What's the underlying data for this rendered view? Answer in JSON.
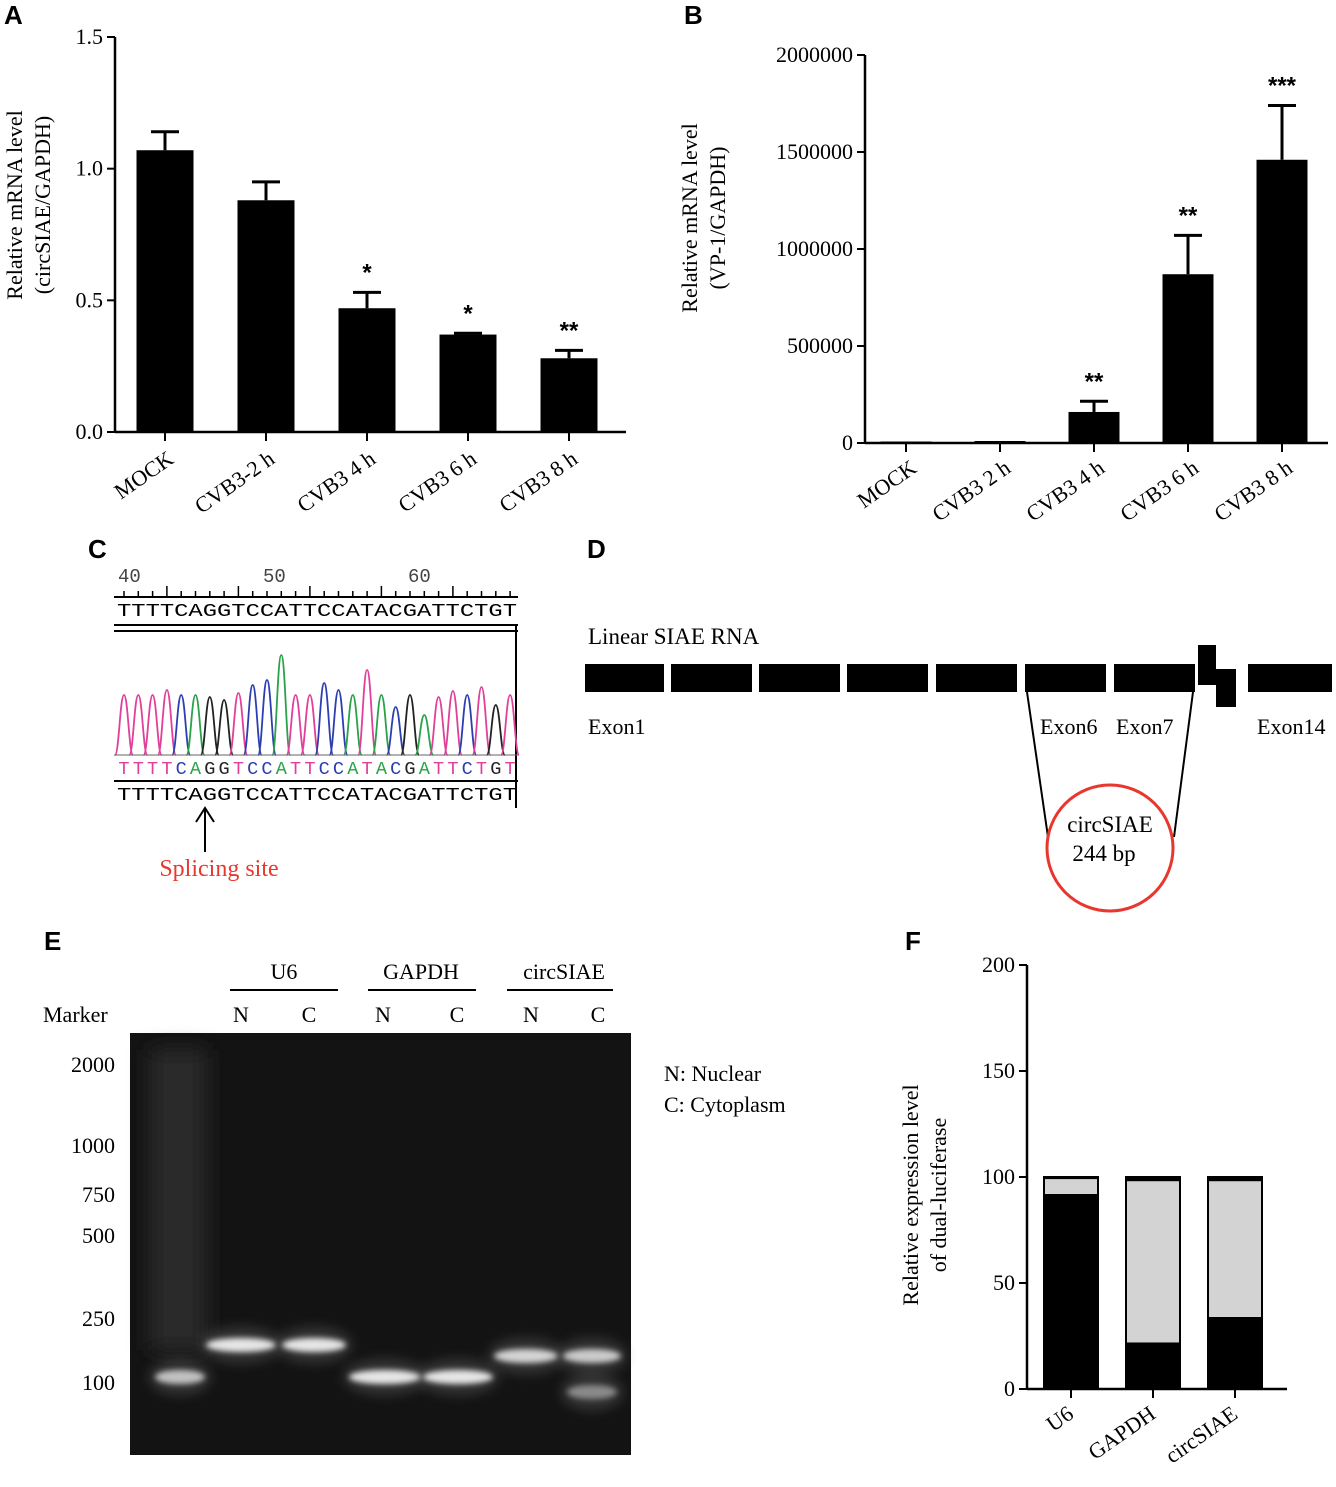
{
  "panel_labels": {
    "A": "A",
    "B": "B",
    "C": "C",
    "D": "D",
    "E": "E",
    "F": "F"
  },
  "chart_data": [
    {
      "id": "A",
      "type": "bar",
      "ylabel_line1": "Relative mRNA level",
      "ylabel_line2": "(circSIAE/GAPDH)",
      "categories": [
        "MOCK",
        "CVB3-2 h",
        "CVB3 4 h",
        "CVB3 6 h",
        "CVB3 8 h"
      ],
      "values": [
        1.07,
        0.88,
        0.47,
        0.37,
        0.28
      ],
      "errors": [
        0.07,
        0.07,
        0.06,
        0.005,
        0.03
      ],
      "significance": [
        "",
        "",
        "*",
        "*",
        "**"
      ],
      "ylim": [
        0,
        1.5
      ],
      "yticks": [
        "0.0",
        "0.5",
        "1.0",
        "1.5"
      ],
      "ytick_values": [
        0,
        0.5,
        1.0,
        1.5
      ],
      "color": "#000000"
    },
    {
      "id": "B",
      "type": "bar",
      "ylabel_line1": "Relative mRNA level",
      "ylabel_line2": "(VP-1/GAPDH)",
      "categories": [
        "MOCK",
        "CVB3 2 h",
        "CVB3 4 h",
        "CVB3 6 h",
        "CVB3 8 h"
      ],
      "values": [
        0,
        10000,
        160000,
        870000,
        1460000
      ],
      "errors": [
        0,
        0,
        55000,
        200000,
        280000
      ],
      "significance": [
        "",
        "",
        "**",
        "**",
        "***"
      ],
      "ylim": [
        0,
        2000000
      ],
      "yticks": [
        "0",
        "500000",
        "1000000",
        "1500000",
        "2000000"
      ],
      "ytick_values": [
        0,
        500000,
        1000000,
        1500000,
        2000000
      ],
      "color": "#000000"
    },
    {
      "id": "F",
      "type": "bar",
      "stacked": true,
      "ylabel_line1": "Relative expression level",
      "ylabel_line2": "of dual-luciferase",
      "categories": [
        "U6",
        "GAPDH",
        "circSIAE"
      ],
      "series": [
        {
          "values": [
            92,
            22,
            34
          ],
          "color": "#000000"
        },
        {
          "values": [
            7,
            76,
            64
          ],
          "color": "#d3d3d3"
        },
        {
          "values": [
            1,
            2,
            2
          ],
          "color": "#000000"
        }
      ],
      "ylim": [
        0,
        200
      ],
      "yticks": [
        "0",
        "50",
        "100",
        "150",
        "200"
      ],
      "ytick_values": [
        0,
        50,
        100,
        150,
        200
      ]
    }
  ],
  "panel_c": {
    "ruler": [
      "40",
      "50",
      "60"
    ],
    "sequence_top": "TTTTCAGGTCCATTCCATACGATTCTGT",
    "sequence_called": "TTTTCAGGTCCATTCCATACGATTCTGT",
    "sequence_bottom": "TTTTCAGGTCCATTCCATACGATTCTGT",
    "splicing_label": "Splicing site",
    "splicing_color": "#e8372e"
  },
  "panel_d": {
    "title": "Linear SIAE RNA",
    "exon1": "Exon1",
    "exon6": "Exon6",
    "exon7": "Exon7",
    "exon14": "Exon14",
    "circ_line1": "circSIAE",
    "circ_line2": "244 bp",
    "circle_color": "#e8372e"
  },
  "panel_e": {
    "groups": [
      "U6",
      "GAPDH",
      "circSIAE"
    ],
    "marker_label": "Marker",
    "lane_labels": [
      "N",
      "C",
      "N",
      "C",
      "N",
      "C"
    ],
    "ladder": [
      "2000",
      "1000",
      "750",
      "500",
      "250",
      "100"
    ],
    "legend_line1": "N: Nuclear",
    "legend_line2": "C: Cytoplasm"
  }
}
